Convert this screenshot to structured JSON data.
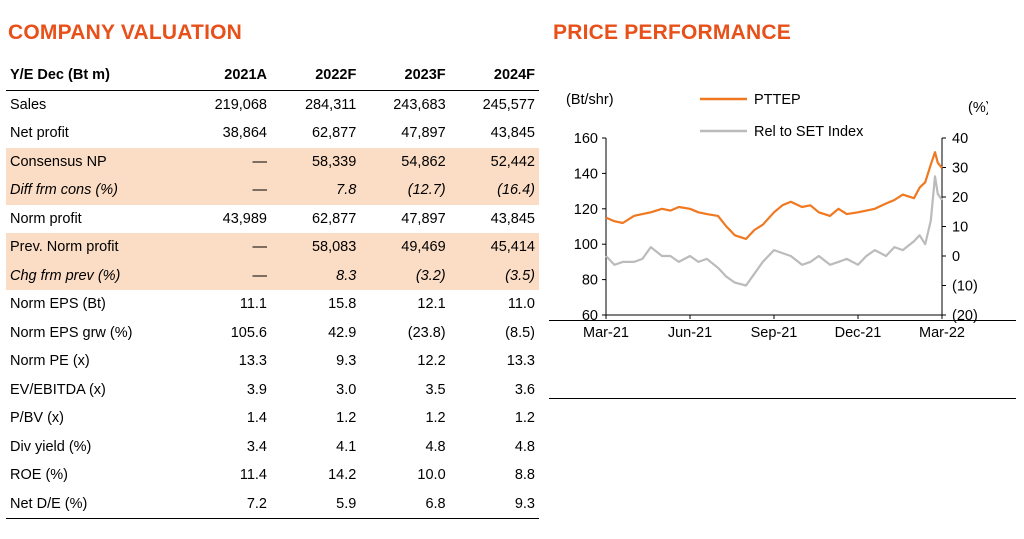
{
  "valuation": {
    "title": "COMPANY VALUATION",
    "headers": [
      "Y/E Dec (Bt m)",
      "2021A",
      "2022F",
      "2023F",
      "2024F"
    ],
    "rows": [
      {
        "label": "Sales",
        "values": [
          "219,068",
          "284,311",
          "243,683",
          "245,577"
        ],
        "shaded": false,
        "italic": false
      },
      {
        "label": "Net profit",
        "values": [
          "38,864",
          "62,877",
          "47,897",
          "43,845"
        ],
        "shaded": false,
        "italic": false
      },
      {
        "label": "Consensus NP",
        "values": [
          "—",
          "58,339",
          "54,862",
          "52,442"
        ],
        "shaded": true,
        "italic": false
      },
      {
        "label": "Diff frm cons (%)",
        "values": [
          "—",
          "7.8",
          "(12.7)",
          "(16.4)"
        ],
        "shaded": true,
        "italic": true
      },
      {
        "label": "Norm profit",
        "values": [
          "43,989",
          "62,877",
          "47,897",
          "43,845"
        ],
        "shaded": false,
        "italic": false
      },
      {
        "label": "Prev. Norm profit",
        "values": [
          "—",
          "58,083",
          "49,469",
          "45,414"
        ],
        "shaded": true,
        "italic": false
      },
      {
        "label": "Chg frm prev (%)",
        "values": [
          "—",
          "8.3",
          "(3.2)",
          "(3.5)"
        ],
        "shaded": true,
        "italic": true
      },
      {
        "label": "Norm EPS (Bt)",
        "values": [
          "11.1",
          "15.8",
          "12.1",
          "11.0"
        ],
        "shaded": false,
        "italic": false
      },
      {
        "label": "Norm EPS grw (%)",
        "values": [
          "105.6",
          "42.9",
          "(23.8)",
          "(8.5)"
        ],
        "shaded": false,
        "italic": false
      },
      {
        "label": "Norm PE (x)",
        "values": [
          "13.3",
          "9.3",
          "12.2",
          "13.3"
        ],
        "shaded": false,
        "italic": false
      },
      {
        "label": "EV/EBITDA (x)",
        "values": [
          "3.9",
          "3.0",
          "3.5",
          "3.6"
        ],
        "shaded": false,
        "italic": false
      },
      {
        "label": "P/BV (x)",
        "values": [
          "1.4",
          "1.2",
          "1.2",
          "1.2"
        ],
        "shaded": false,
        "italic": false
      },
      {
        "label": "Div yield (%)",
        "values": [
          "3.4",
          "4.1",
          "4.8",
          "4.8"
        ],
        "shaded": false,
        "italic": false
      },
      {
        "label": "ROE (%)",
        "values": [
          "11.4",
          "14.2",
          "10.0",
          "8.8"
        ],
        "shaded": false,
        "italic": false
      },
      {
        "label": "Net D/E (%)",
        "values": [
          "7.2",
          "5.9",
          "6.8",
          "9.3"
        ],
        "shaded": false,
        "italic": false
      }
    ]
  },
  "performance": {
    "title": "PRICE PERFORMANCE"
  },
  "chart_data": {
    "type": "line",
    "left_axis_label": "(Bt/shr)",
    "right_axis_label": "(%)",
    "x_ticks": [
      "Mar-21",
      "Jun-21",
      "Sep-21",
      "Dec-21",
      "Mar-22"
    ],
    "x_range": [
      0,
      12
    ],
    "y_left_ticks": [
      "60",
      "80",
      "100",
      "120",
      "140",
      "160"
    ],
    "y_left_range": [
      60,
      160
    ],
    "y_right_ticks": [
      "(20)",
      "(10)",
      "0",
      "10",
      "20",
      "30",
      "40"
    ],
    "y_right_range": [
      -20,
      40
    ],
    "legend_position": "top",
    "series": [
      {
        "name": "PTTEP",
        "axis": "left",
        "color": "#f07820",
        "x": [
          0,
          0.3,
          0.6,
          1,
          1.3,
          1.6,
          2,
          2.3,
          2.6,
          3,
          3.3,
          3.6,
          4,
          4.3,
          4.6,
          5,
          5.3,
          5.6,
          6,
          6.3,
          6.6,
          7,
          7.3,
          7.6,
          8,
          8.3,
          8.6,
          9,
          9.3,
          9.6,
          10,
          10.3,
          10.6,
          11,
          11.2,
          11.4,
          11.6,
          11.75,
          11.85,
          12
        ],
        "values": [
          115,
          113,
          112,
          116,
          117,
          118,
          120,
          119,
          121,
          120,
          118,
          117,
          116,
          110,
          105,
          103,
          108,
          111,
          118,
          122,
          124,
          121,
          122,
          118,
          116,
          120,
          117,
          118,
          119,
          120,
          123,
          125,
          128,
          126,
          132,
          135,
          145,
          152,
          146,
          143
        ]
      },
      {
        "name": "Rel to SET Index",
        "axis": "right",
        "color": "#bbbbbb",
        "x": [
          0,
          0.3,
          0.6,
          1,
          1.3,
          1.6,
          2,
          2.3,
          2.6,
          3,
          3.3,
          3.6,
          4,
          4.3,
          4.6,
          5,
          5.3,
          5.6,
          6,
          6.3,
          6.6,
          7,
          7.3,
          7.6,
          8,
          8.3,
          8.6,
          9,
          9.3,
          9.6,
          10,
          10.3,
          10.6,
          11,
          11.2,
          11.4,
          11.6,
          11.75,
          11.85,
          12
        ],
        "values": [
          0,
          -3,
          -2,
          -2,
          -1,
          3,
          0,
          0,
          -2,
          0,
          -2,
          -1,
          -4,
          -7,
          -9,
          -10,
          -6,
          -2,
          2,
          1,
          0,
          -3,
          -2,
          0,
          -3,
          -2,
          -1,
          -3,
          0,
          2,
          0,
          3,
          2,
          5,
          7,
          4,
          12,
          27,
          21,
          19
        ]
      }
    ]
  }
}
